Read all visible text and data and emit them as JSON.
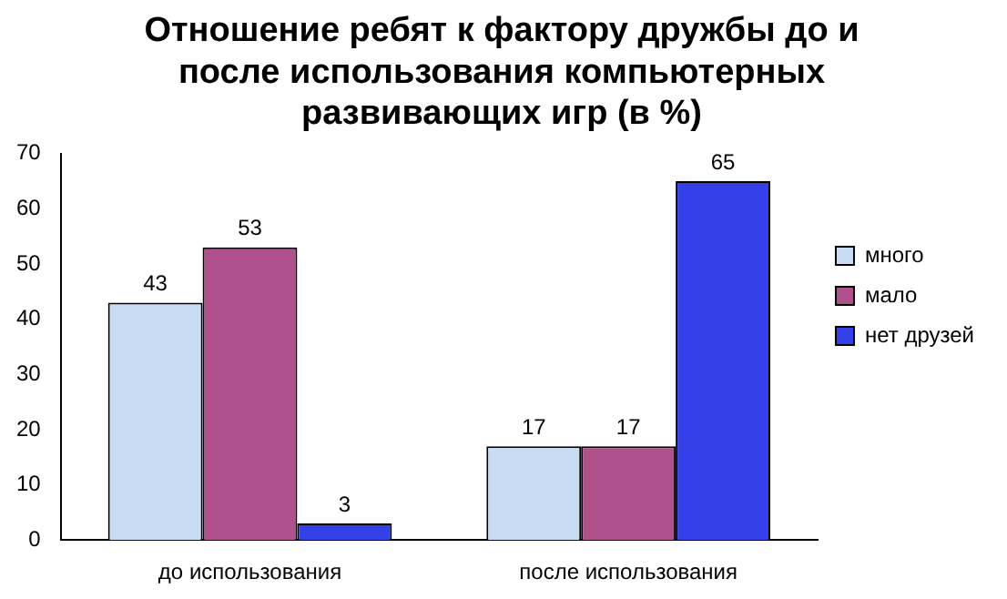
{
  "chart_data": {
    "type": "bar",
    "title": "Отношение ребят к фактору дружбы до и после использования компьютерных развивающих игр (в %)",
    "categories": [
      "до использования",
      "после использования"
    ],
    "series": [
      {
        "name": "много",
        "color": "#c8dcf4",
        "values": [
          43,
          17
        ]
      },
      {
        "name": "мало",
        "color": "#b0508c",
        "values": [
          53,
          17
        ]
      },
      {
        "name": "нет друзей",
        "color": "#3440e8",
        "values": [
          3,
          65
        ]
      }
    ],
    "ylim": [
      0,
      70
    ],
    "yticks": [
      0,
      10,
      20,
      30,
      40,
      50,
      60,
      70
    ],
    "grid": false,
    "legend": "right",
    "data_labels": true
  }
}
